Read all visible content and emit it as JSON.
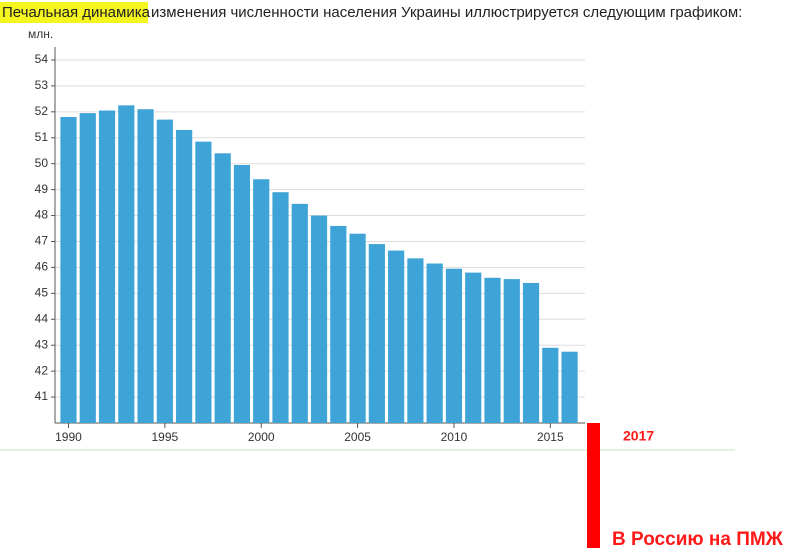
{
  "chart_data": {
    "type": "bar",
    "title_highlight": "Печальная динамика",
    "title": "изменения численности населения Украины иллюстрируется следующим графиком:",
    "ylabel": "млн.",
    "x": [
      1990,
      1991,
      1992,
      1993,
      1994,
      1995,
      1996,
      1997,
      1998,
      1999,
      2000,
      2001,
      2002,
      2003,
      2004,
      2005,
      2006,
      2007,
      2008,
      2009,
      2010,
      2011,
      2012,
      2013,
      2014,
      2015,
      2016
    ],
    "values": [
      51.8,
      51.95,
      52.05,
      52.25,
      52.1,
      51.7,
      51.3,
      50.85,
      50.4,
      49.95,
      49.4,
      48.9,
      48.45,
      48.0,
      47.6,
      47.3,
      46.9,
      46.65,
      46.35,
      46.15,
      45.95,
      45.8,
      45.6,
      45.55,
      45.4,
      42.9,
      42.75
    ],
    "color": "#3ea4d8",
    "xlim": [
      1989.3,
      2016.8
    ],
    "xticks": [
      1990,
      1995,
      2000,
      2005,
      2010,
      2015
    ],
    "ylim": [
      40,
      54.5
    ],
    "yticks": [
      41,
      42,
      43,
      44,
      45,
      46,
      47,
      48,
      49,
      50,
      51,
      52,
      53,
      54
    ],
    "grid": true,
    "annotations": [
      "2017",
      "В Россию на ПМЖ"
    ]
  }
}
